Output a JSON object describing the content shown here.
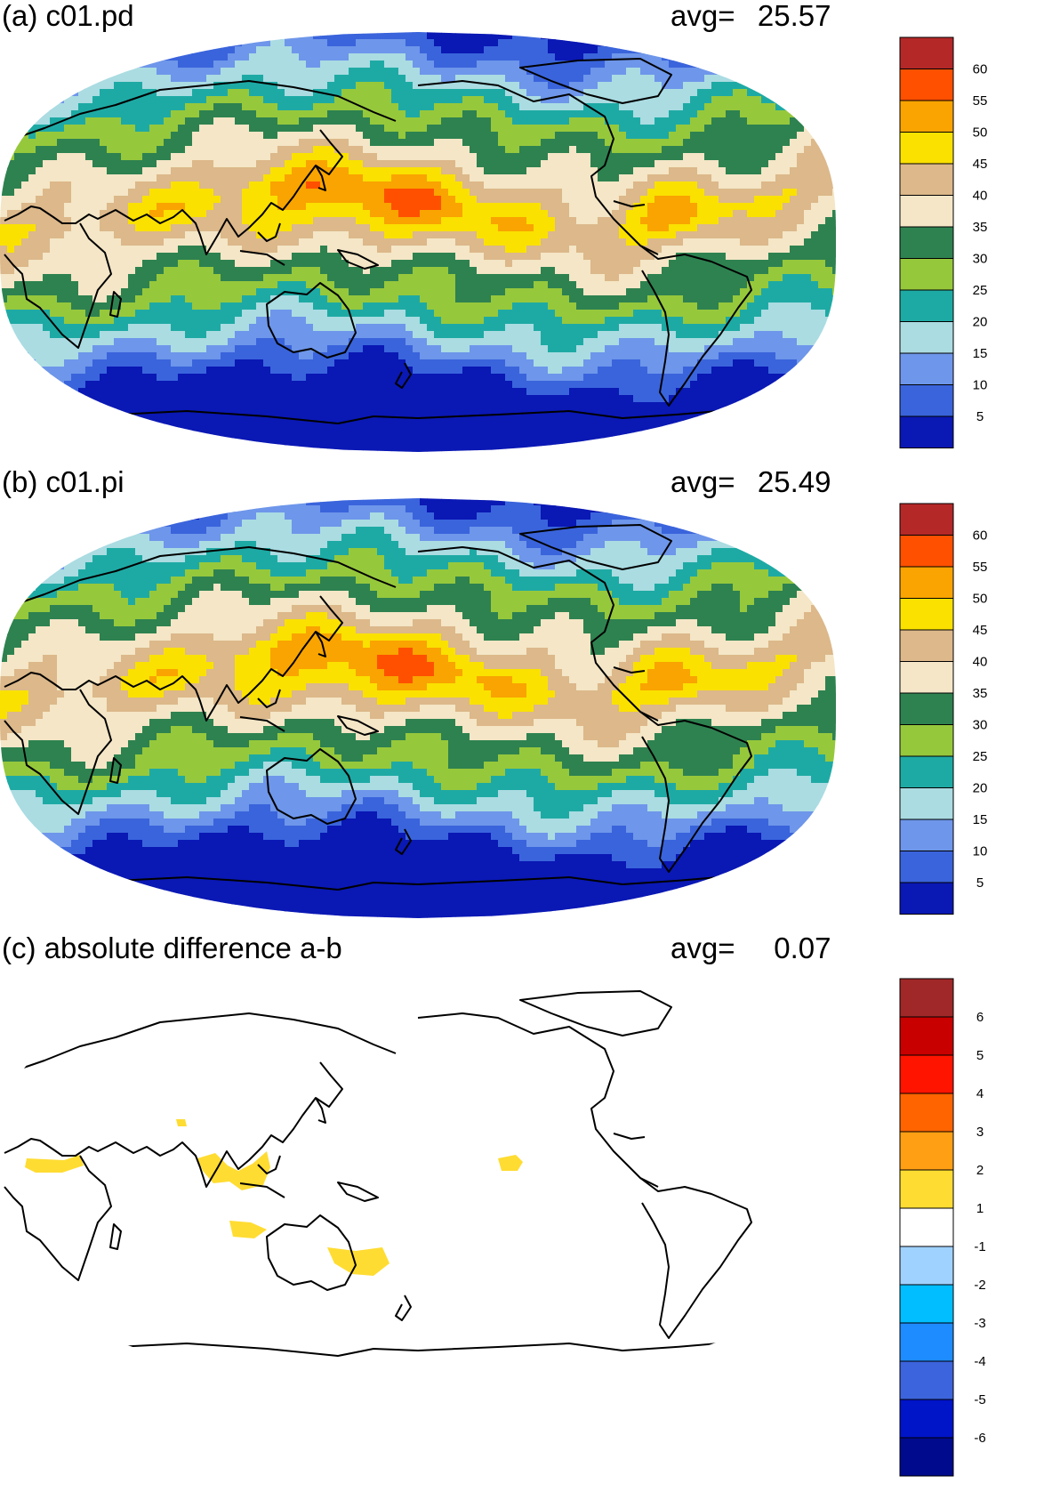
{
  "chart_data": [
    {
      "type": "heatmap",
      "panel": "a",
      "title": "(a) c01.pd",
      "avg_label": "avg=",
      "avg_value": "25.57",
      "projection": "Robinson, Pacific-centered",
      "colorbar": {
        "levels": [
          "5",
          "10",
          "15",
          "20",
          "25",
          "30",
          "35",
          "40",
          "45",
          "50",
          "55",
          "60"
        ],
        "colors": [
          "#0a18b4",
          "#3a64dc",
          "#6e96ea",
          "#aadce2",
          "#1eaaa4",
          "#96c83c",
          "#2e8250",
          "#f4e6c6",
          "#dcb88a",
          "#fae100",
          "#f9a400",
          "#ff5000",
          "#b42828"
        ]
      },
      "features": [
        "tropical max ~55-60 over western Pacific warm pool",
        "minimum ~5 over Antarctica and Arctic"
      ]
    },
    {
      "type": "heatmap",
      "panel": "b",
      "title": "(b) c01.pi",
      "avg_label": "avg=",
      "avg_value": "25.49",
      "projection": "Robinson, Pacific-centered",
      "colorbar": {
        "levels": [
          "5",
          "10",
          "15",
          "20",
          "25",
          "30",
          "35",
          "40",
          "45",
          "50",
          "55",
          "60"
        ],
        "colors": [
          "#0a18b4",
          "#3a64dc",
          "#6e96ea",
          "#aadce2",
          "#1eaaa4",
          "#96c83c",
          "#2e8250",
          "#f4e6c6",
          "#dcb88a",
          "#fae100",
          "#f9a400",
          "#ff5000",
          "#b42828"
        ]
      }
    },
    {
      "type": "heatmap",
      "panel": "c",
      "title": "(c) absolute difference a-b",
      "avg_label": "avg=",
      "avg_value": "0.07",
      "projection": "Robinson, Pacific-centered",
      "colorbar": {
        "levels": [
          "-6",
          "-5",
          "-4",
          "-3",
          "-2",
          "-1",
          "1",
          "2",
          "3",
          "4",
          "5",
          "6"
        ],
        "colors": [
          "#000a8c",
          "#0014c8",
          "#3c64dc",
          "#1e8cff",
          "#00beff",
          "#a0d2ff",
          "#ffffff",
          "#ffdc32",
          "#ffa014",
          "#ff6400",
          "#ff1400",
          "#c80000",
          "#a02828"
        ]
      },
      "features": [
        "small positive (1-2) patches over Southeast Asia, Maritime Continent, northern Australia, central Pacific, North Africa"
      ]
    }
  ]
}
